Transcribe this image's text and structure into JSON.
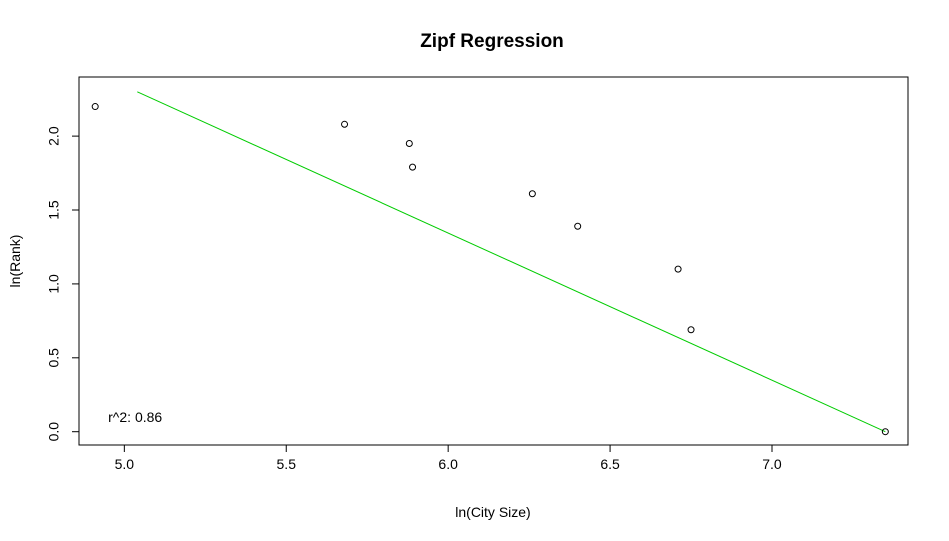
{
  "chart_data": {
    "type": "scatter",
    "title": "Zipf Regression",
    "xlabel": "ln(City Size)",
    "ylabel": "ln(Rank)",
    "xlim": [
      4.86,
      7.42
    ],
    "ylim": [
      -0.09,
      2.4
    ],
    "xticks": [
      {
        "value": 5.0,
        "label": "5.0"
      },
      {
        "value": 5.5,
        "label": "5.5"
      },
      {
        "value": 6.0,
        "label": "6.0"
      },
      {
        "value": 6.5,
        "label": "6.5"
      },
      {
        "value": 7.0,
        "label": "7.0"
      }
    ],
    "yticks": [
      {
        "value": 0.0,
        "label": "0.0"
      },
      {
        "value": 0.5,
        "label": "0.5"
      },
      {
        "value": 1.0,
        "label": "1.0"
      },
      {
        "value": 1.5,
        "label": "1.5"
      },
      {
        "value": 2.0,
        "label": "2.0"
      }
    ],
    "points": [
      {
        "x": 4.91,
        "y": 2.2
      },
      {
        "x": 5.68,
        "y": 2.08
      },
      {
        "x": 5.88,
        "y": 1.95
      },
      {
        "x": 5.89,
        "y": 1.79
      },
      {
        "x": 6.26,
        "y": 1.61
      },
      {
        "x": 6.4,
        "y": 1.39
      },
      {
        "x": 6.71,
        "y": 1.1
      },
      {
        "x": 6.75,
        "y": 0.69
      },
      {
        "x": 7.35,
        "y": 0.0
      }
    ],
    "regression_line": {
      "x1": 5.04,
      "y1": 2.3,
      "x2": 7.35,
      "y2": 0.0,
      "color": "#00cc00"
    },
    "annotation": {
      "text": "r^2: 0.86",
      "x": 4.95,
      "y": 0.09
    },
    "grid": false,
    "point_style": "open-circle",
    "point_color": "#000000"
  }
}
